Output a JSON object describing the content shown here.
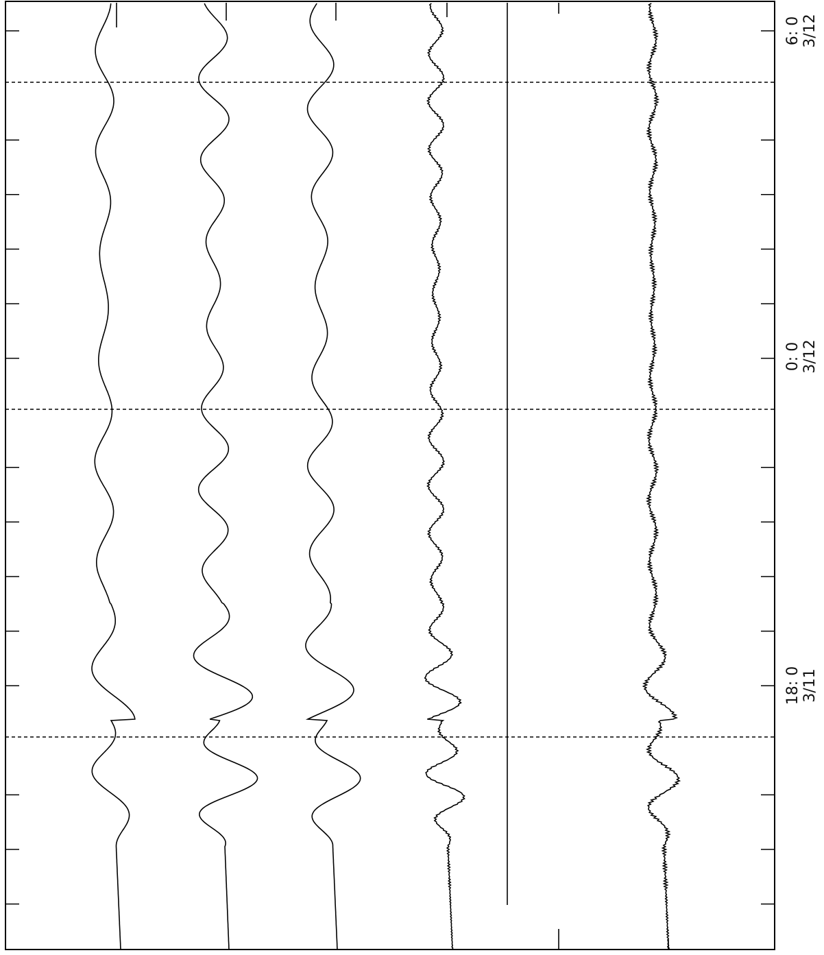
{
  "time_axis": {
    "labels": [
      {
        "time": "6: 0",
        "date": "3/12"
      },
      {
        "time": "0: 0",
        "date": "3/12"
      },
      {
        "time": "18: 0",
        "date": "3/11"
      }
    ]
  }
}
